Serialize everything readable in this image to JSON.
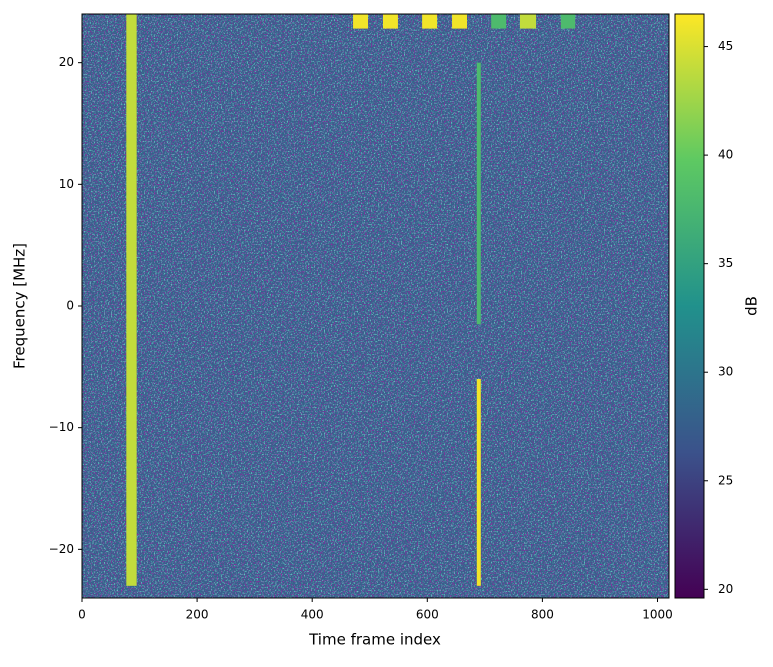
{
  "chart_data": {
    "type": "heatmap",
    "xlabel": "Time frame index",
    "ylabel": "Frequency [MHz]",
    "colorbar_label": "dB",
    "xlim": [
      0,
      1020
    ],
    "xticks": [
      0,
      200,
      400,
      600,
      800,
      1000
    ],
    "ylim": [
      -24,
      24
    ],
    "yticks": [
      {
        "value": -20,
        "label": "−20"
      },
      {
        "value": -10,
        "label": "−10"
      },
      0,
      10,
      20
    ],
    "clim": [
      19.6,
      46.5
    ],
    "cticks": [
      20,
      25,
      30,
      35,
      40,
      45
    ],
    "colormap": "viridis",
    "background_value": 28,
    "regions": [
      {
        "x": [
          77,
          95
        ],
        "y": [
          -23,
          24
        ],
        "value": 44
      },
      {
        "x": [
          686,
          693
        ],
        "y": [
          -1.5,
          20
        ],
        "value": 38
      },
      {
        "x": [
          686,
          693
        ],
        "y": [
          -23,
          -6
        ],
        "value": 46
      },
      {
        "x": [
          471,
          497
        ],
        "y": [
          22.8,
          24
        ],
        "value": 46
      },
      {
        "x": [
          523,
          549
        ],
        "y": [
          22.8,
          24
        ],
        "value": 46
      },
      {
        "x": [
          591,
          617
        ],
        "y": [
          22.8,
          24
        ],
        "value": 46
      },
      {
        "x": [
          643,
          669
        ],
        "y": [
          22.8,
          24
        ],
        "value": 46
      },
      {
        "x": [
          711,
          737
        ],
        "y": [
          22.8,
          24
        ],
        "value": 38
      },
      {
        "x": [
          761,
          789
        ],
        "y": [
          22.8,
          24
        ],
        "value": 44
      },
      {
        "x": [
          832,
          857
        ],
        "y": [
          22.8,
          24
        ],
        "value": 38
      }
    ]
  }
}
